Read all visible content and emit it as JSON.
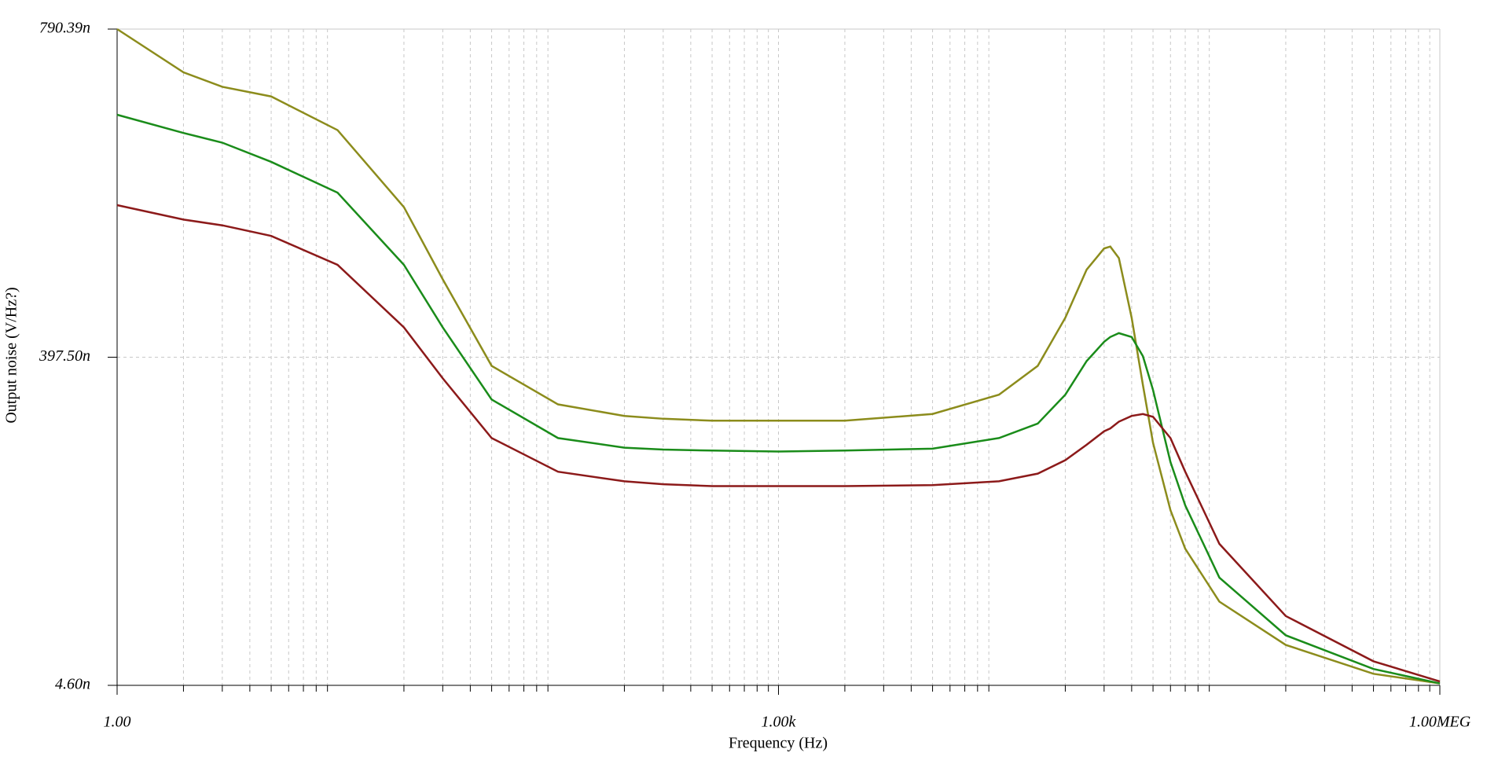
{
  "chart_data": {
    "type": "line",
    "x_label": "Frequency (Hz)",
    "y_label": "Output noise (V/Hz?)",
    "x_log": true,
    "grid": true,
    "xlim": [
      1,
      1000000
    ],
    "ylim": [
      4.6,
      790.39
    ],
    "xticks": [
      {
        "value": 1,
        "label": "1.00"
      },
      {
        "value": 1000,
        "label": "1.00k"
      },
      {
        "value": 1000000,
        "label": "1.00MEG"
      }
    ],
    "xminorticks": [
      2,
      3,
      4,
      5,
      6,
      7,
      8,
      9,
      20,
      30,
      40,
      50,
      60,
      70,
      80,
      90,
      200,
      300,
      400,
      500,
      600,
      700,
      800,
      900,
      2000,
      3000,
      4000,
      5000,
      6000,
      7000,
      8000,
      9000,
      20000,
      30000,
      40000,
      50000,
      60000,
      70000,
      80000,
      90000,
      200000,
      300000,
      400000,
      500000,
      600000,
      700000,
      800000,
      900000
    ],
    "yticks": [
      {
        "value": 4.6,
        "label": "4.60n"
      },
      {
        "value": 397.5,
        "label": "397.50n"
      },
      {
        "value": 790.39,
        "label": "790.39n"
      }
    ],
    "x": [
      1,
      2,
      3,
      5,
      10,
      20,
      30,
      50,
      100,
      200,
      300,
      500,
      1000,
      2000,
      5000,
      10000,
      15000,
      20000,
      25000,
      30000,
      32000,
      35000,
      40000,
      45000,
      50000,
      60000,
      70000,
      100000,
      200000,
      500000,
      1000000
    ],
    "series": [
      {
        "color": "#8c8c1c",
        "values": [
          790.4,
          738.6,
          721.3,
          709.7,
          669.4,
          577.2,
          490.8,
          387.1,
          341.0,
          327.2,
          323.8,
          321.5,
          321.5,
          321.5,
          329.5,
          352.6,
          387.1,
          444.7,
          502.4,
          527.7,
          530.0,
          516.2,
          444.7,
          364.1,
          295.0,
          214.3,
          168.2,
          104.8,
          53.0,
          18.4,
          6.9
        ]
      },
      {
        "color": "#1a8c1a",
        "values": [
          687.8,
          666.0,
          654.4,
          631.4,
          594.5,
          508.1,
          433.2,
          346.8,
          300.7,
          289.2,
          286.9,
          285.7,
          284.6,
          285.7,
          288.0,
          300.7,
          318.0,
          352.6,
          392.9,
          415.9,
          421.7,
          426.3,
          421.7,
          398.7,
          358.3,
          271.9,
          220.1,
          133.6,
          64.5,
          24.2,
          6.9
        ]
      },
      {
        "color": "#8c1a1a",
        "values": [
          579.6,
          562.3,
          555.4,
          542.7,
          508.1,
          433.2,
          372.2,
          300.7,
          260.4,
          248.9,
          245.4,
          243.1,
          243.1,
          243.1,
          244.3,
          248.9,
          258.1,
          274.2,
          292.7,
          308.8,
          312.2,
          320.3,
          327.2,
          329.5,
          326.1,
          300.7,
          260.4,
          174.0,
          87.6,
          33.4,
          9.2
        ]
      }
    ]
  }
}
